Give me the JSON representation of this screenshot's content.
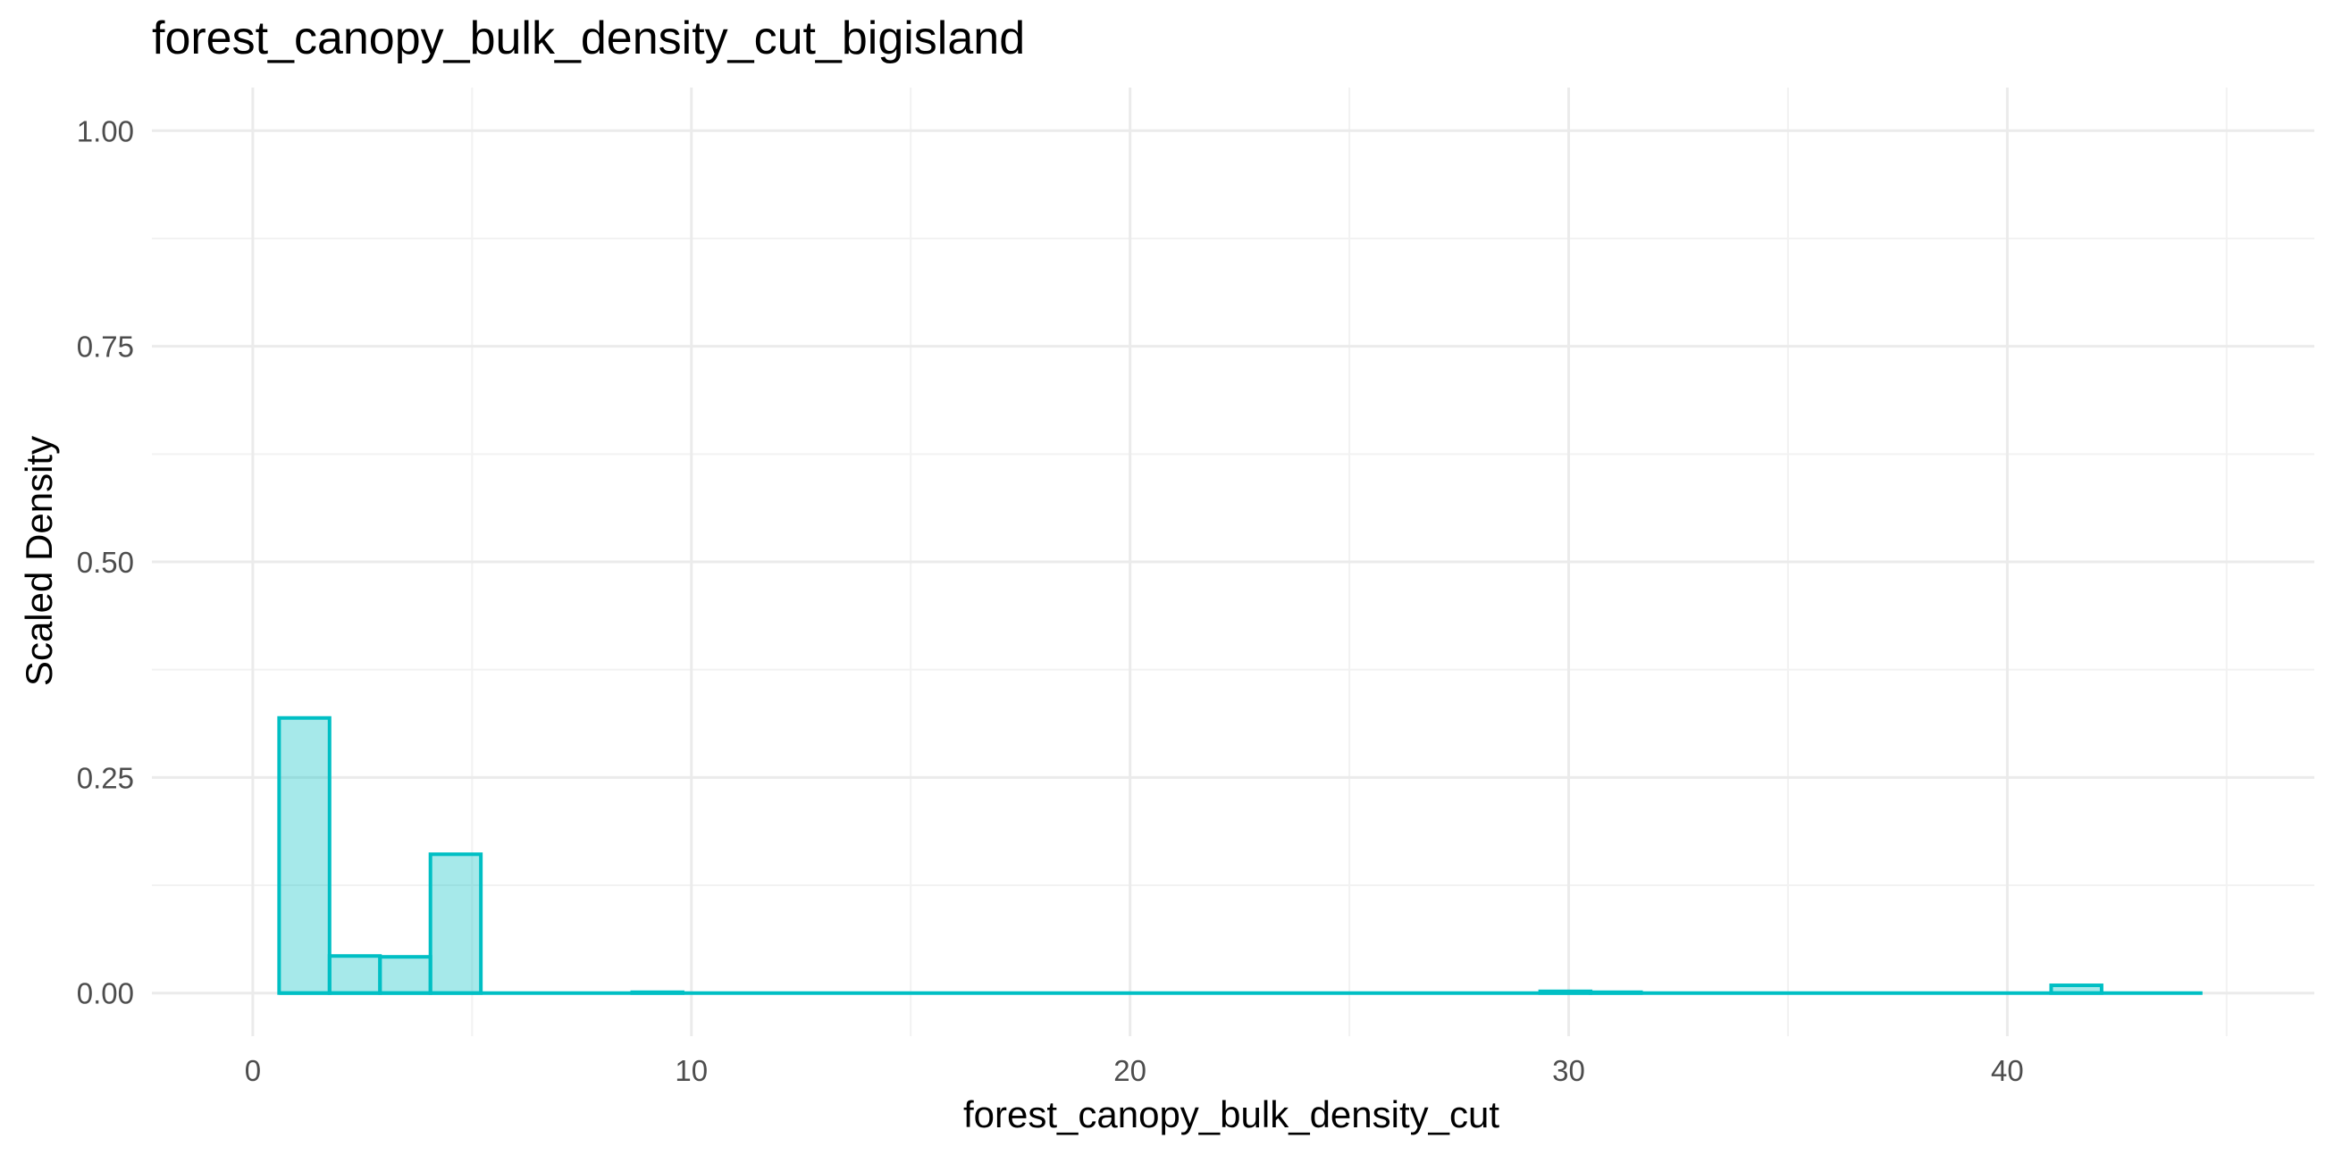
{
  "chart_data": {
    "type": "bar",
    "title": "forest_canopy_bulk_density_cut_bigisland",
    "xlabel": "forest_canopy_bulk_density_cut",
    "ylabel": "Scaled Density",
    "xlim": [
      -2.3,
      47.0
    ],
    "ylim": [
      -0.05,
      1.05
    ],
    "x_ticks": [
      0,
      10,
      20,
      30,
      40
    ],
    "x_tick_labels": [
      "0",
      "10",
      "20",
      "30",
      "40"
    ],
    "y_ticks": [
      0,
      0.25,
      0.5,
      0.75,
      1.0
    ],
    "y_tick_labels": [
      "0.00",
      "0.25",
      "0.50",
      "0.75",
      "1.00"
    ],
    "grid": true,
    "bin_width": 1.15,
    "bins": [
      {
        "x0": 0.6,
        "x1": 1.75,
        "value": 0.319
      },
      {
        "x0": 1.75,
        "x1": 2.9,
        "value": 0.043
      },
      {
        "x0": 2.9,
        "x1": 4.05,
        "value": 0.042
      },
      {
        "x0": 4.05,
        "x1": 5.2,
        "value": 0.161
      },
      {
        "x0": 8.65,
        "x1": 9.8,
        "value": 0.001
      },
      {
        "x0": 29.35,
        "x1": 30.5,
        "value": 0.002
      },
      {
        "x0": 30.5,
        "x1": 31.65,
        "value": 0.001
      },
      {
        "x0": 41.0,
        "x1": 42.15,
        "value": 0.009
      }
    ],
    "x_extent": [
      0.6,
      44.45
    ],
    "colors": {
      "outline": "#00BFC4",
      "fill": "#00BFC4",
      "fill_opacity": 0.35
    }
  }
}
